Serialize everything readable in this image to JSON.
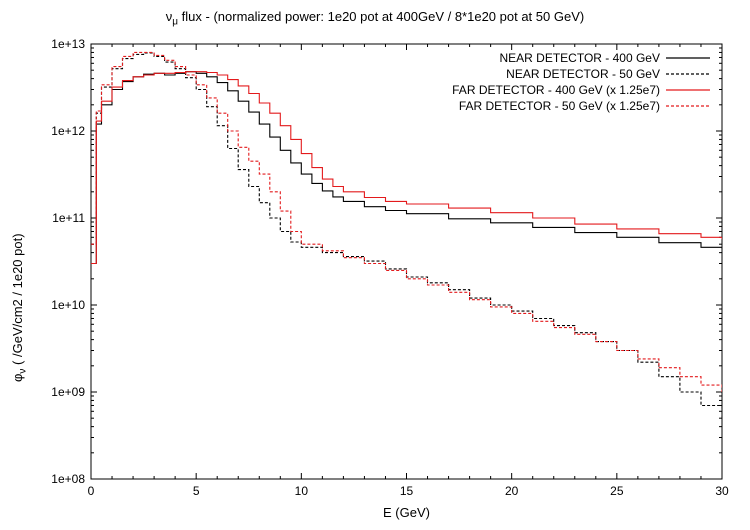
{
  "chart_data": {
    "type": "line",
    "title_prefix": "ν",
    "title_subscript": "μ",
    "title_rest": " flux  - (normalized power: 1e20 pot at 400GeV / 8*1e20 pot at 50 GeV)",
    "xlabel": "E (GeV)",
    "ylabel_symbol": "φ",
    "ylabel_subscript": "ν",
    "ylabel_rest": " ( /GeV/cm2 / 1e20 pot)",
    "xlim": [
      0,
      30
    ],
    "ylim": [
      100000000.0,
      10000000000000.0
    ],
    "yscale": "log",
    "grid": false,
    "legend_position": "top-right",
    "x_ticks": [
      "0",
      "5",
      "10",
      "15",
      "20",
      "25",
      "30"
    ],
    "y_ticks": [
      "1e+08",
      "1e+09",
      "1e+10",
      "1e+11",
      "1e+12",
      "1e+13"
    ],
    "series": [
      {
        "name": "NEAR DETECTOR - 400 GeV",
        "color": "#000000",
        "dash": "solid",
        "points": [
          [
            0,
            30000000000.0
          ],
          [
            0.25,
            1200000000000.0
          ],
          [
            0.5,
            2000000000000.0
          ],
          [
            1.0,
            3000000000000.0
          ],
          [
            1.5,
            3700000000000.0
          ],
          [
            2.0,
            4200000000000.0
          ],
          [
            2.5,
            4500000000000.0
          ],
          [
            3.0,
            4600000000000.0
          ],
          [
            3.5,
            4400000000000.0
          ],
          [
            4.0,
            4600000000000.0
          ],
          [
            4.5,
            4800000000000.0
          ],
          [
            5.0,
            4600000000000.0
          ],
          [
            5.5,
            4200000000000.0
          ],
          [
            6.0,
            3600000000000.0
          ],
          [
            6.5,
            2900000000000.0
          ],
          [
            7.0,
            2200000000000.0
          ],
          [
            7.5,
            1650000000000.0
          ],
          [
            8.0,
            1200000000000.0
          ],
          [
            8.5,
            850000000000.0
          ],
          [
            9.0,
            600000000000.0
          ],
          [
            9.5,
            430000000000.0
          ],
          [
            10.0,
            320000000000.0
          ],
          [
            10.5,
            250000000000.0
          ],
          [
            11.0,
            205000000000.0
          ],
          [
            11.5,
            175000000000.0
          ],
          [
            12.0,
            155000000000.0
          ],
          [
            13.0,
            135000000000.0
          ],
          [
            14.0,
            122000000000.0
          ],
          [
            15.0,
            112000000000.0
          ],
          [
            17.0,
            98000000000.0
          ],
          [
            19.0,
            88000000000.0
          ],
          [
            21.0,
            78000000000.0
          ],
          [
            23.0,
            68000000000.0
          ],
          [
            25.0,
            60000000000.0
          ],
          [
            27.0,
            52000000000.0
          ],
          [
            29.0,
            46000000000.0
          ],
          [
            30.0,
            44000000000.0
          ]
        ]
      },
      {
        "name": "NEAR DETECTOR - 50 GeV",
        "color": "#000000",
        "dash": "dashed",
        "points": [
          [
            0,
            50000000000.0
          ],
          [
            0.25,
            1600000000000.0
          ],
          [
            0.5,
            3200000000000.0
          ],
          [
            1.0,
            5200000000000.0
          ],
          [
            1.5,
            6800000000000.0
          ],
          [
            2.0,
            7600000000000.0
          ],
          [
            2.5,
            7900000000000.0
          ],
          [
            3.0,
            7200000000000.0
          ],
          [
            3.5,
            6200000000000.0
          ],
          [
            4.0,
            5200000000000.0
          ],
          [
            4.5,
            4100000000000.0
          ],
          [
            5.0,
            3000000000000.0
          ],
          [
            5.5,
            1900000000000.0
          ],
          [
            6.0,
            1150000000000.0
          ],
          [
            6.5,
            630000000000.0
          ],
          [
            7.0,
            360000000000.0
          ],
          [
            7.5,
            230000000000.0
          ],
          [
            8.0,
            150000000000.0
          ],
          [
            8.5,
            100000000000.0
          ],
          [
            9.0,
            70000000000.0
          ],
          [
            9.5,
            53000000000.0
          ],
          [
            10.0,
            46000000000.0
          ],
          [
            11.0,
            40000000000.0
          ],
          [
            12.0,
            36000000000.0
          ],
          [
            13.0,
            32000000000.0
          ],
          [
            14.0,
            26000000000.0
          ],
          [
            15.0,
            21000000000.0
          ],
          [
            16.0,
            18000000000.0
          ],
          [
            17.0,
            15000000000.0
          ],
          [
            18.0,
            12000000000.0
          ],
          [
            19.0,
            10000000000.0
          ],
          [
            20.0,
            8500000000.0
          ],
          [
            21.0,
            7000000000.0
          ],
          [
            22.0,
            5800000000.0
          ],
          [
            23.0,
            4800000000.0
          ],
          [
            24.0,
            3800000000.0
          ],
          [
            25.0,
            3000000000.0
          ],
          [
            26.0,
            2200000000.0
          ],
          [
            27.0,
            1500000000.0
          ],
          [
            28.0,
            1000000000.0
          ],
          [
            29.0,
            700000000.0
          ],
          [
            30.0,
            500000000.0
          ]
        ]
      },
      {
        "name": "FAR DETECTOR - 400 GeV (x 1.25e7)",
        "color": "#e31a1c",
        "dash": "solid",
        "points": [
          [
            0,
            30000000000.0
          ],
          [
            0.25,
            1300000000000.0
          ],
          [
            0.5,
            2200000000000.0
          ],
          [
            1.0,
            3200000000000.0
          ],
          [
            1.5,
            3800000000000.0
          ],
          [
            2.0,
            4200000000000.0
          ],
          [
            2.5,
            4400000000000.0
          ],
          [
            3.0,
            4600000000000.0
          ],
          [
            3.5,
            4600000000000.0
          ],
          [
            4.0,
            4700000000000.0
          ],
          [
            4.5,
            4800000000000.0
          ],
          [
            5.0,
            4800000000000.0
          ],
          [
            5.5,
            4700000000000.0
          ],
          [
            6.0,
            4400000000000.0
          ],
          [
            6.5,
            3900000000000.0
          ],
          [
            7.0,
            3300000000000.0
          ],
          [
            7.5,
            2700000000000.0
          ],
          [
            8.0,
            2100000000000.0
          ],
          [
            8.5,
            1600000000000.0
          ],
          [
            9.0,
            1150000000000.0
          ],
          [
            9.5,
            800000000000.0
          ],
          [
            10.0,
            550000000000.0
          ],
          [
            10.5,
            380000000000.0
          ],
          [
            11.0,
            280000000000.0
          ],
          [
            11.5,
            230000000000.0
          ],
          [
            12.0,
            200000000000.0
          ],
          [
            13.0,
            172000000000.0
          ],
          [
            14.0,
            155000000000.0
          ],
          [
            15.0,
            145000000000.0
          ],
          [
            17.0,
            130000000000.0
          ],
          [
            19.0,
            115000000000.0
          ],
          [
            21.0,
            100000000000.0
          ],
          [
            23.0,
            85000000000.0
          ],
          [
            25.0,
            75000000000.0
          ],
          [
            27.0,
            66000000000.0
          ],
          [
            29.0,
            60000000000.0
          ],
          [
            30.0,
            57000000000.0
          ]
        ]
      },
      {
        "name": "FAR DETECTOR - 50 GeV (x 1.25e7)",
        "color": "#e31a1c",
        "dash": "dashed",
        "points": [
          [
            0,
            50000000000.0
          ],
          [
            0.25,
            1700000000000.0
          ],
          [
            0.5,
            3400000000000.0
          ],
          [
            1.0,
            5500000000000.0
          ],
          [
            1.5,
            7200000000000.0
          ],
          [
            2.0,
            8000000000000.0
          ],
          [
            2.5,
            8000000000000.0
          ],
          [
            3.0,
            7400000000000.0
          ],
          [
            3.5,
            6500000000000.0
          ],
          [
            4.0,
            5500000000000.0
          ],
          [
            4.5,
            4400000000000.0
          ],
          [
            5.0,
            3400000000000.0
          ],
          [
            5.5,
            2400000000000.0
          ],
          [
            6.0,
            1600000000000.0
          ],
          [
            6.5,
            1000000000000.0
          ],
          [
            7.0,
            650000000000.0
          ],
          [
            7.5,
            450000000000.0
          ],
          [
            8.0,
            320000000000.0
          ],
          [
            8.5,
            200000000000.0
          ],
          [
            9.0,
            120000000000.0
          ],
          [
            9.5,
            70000000000.0
          ],
          [
            10.0,
            50000000000.0
          ],
          [
            11.0,
            42000000000.0
          ],
          [
            12.0,
            35000000000.0
          ],
          [
            13.0,
            30000000000.0
          ],
          [
            14.0,
            25000000000.0
          ],
          [
            15.0,
            20000000000.0
          ],
          [
            16.0,
            17000000000.0
          ],
          [
            17.0,
            14000000000.0
          ],
          [
            18.0,
            11500000000.0
          ],
          [
            19.0,
            9500000000.0
          ],
          [
            20.0,
            8000000000.0
          ],
          [
            21.0,
            6500000000.0
          ],
          [
            22.0,
            5500000000.0
          ],
          [
            23.0,
            4600000000.0
          ],
          [
            24.0,
            3800000000.0
          ],
          [
            25.0,
            3000000000.0
          ],
          [
            26.0,
            2400000000.0
          ],
          [
            27.0,
            1900000000.0
          ],
          [
            28.0,
            1500000000.0
          ],
          [
            29.0,
            1200000000.0
          ],
          [
            30.0,
            1000000000.0
          ]
        ]
      }
    ]
  }
}
